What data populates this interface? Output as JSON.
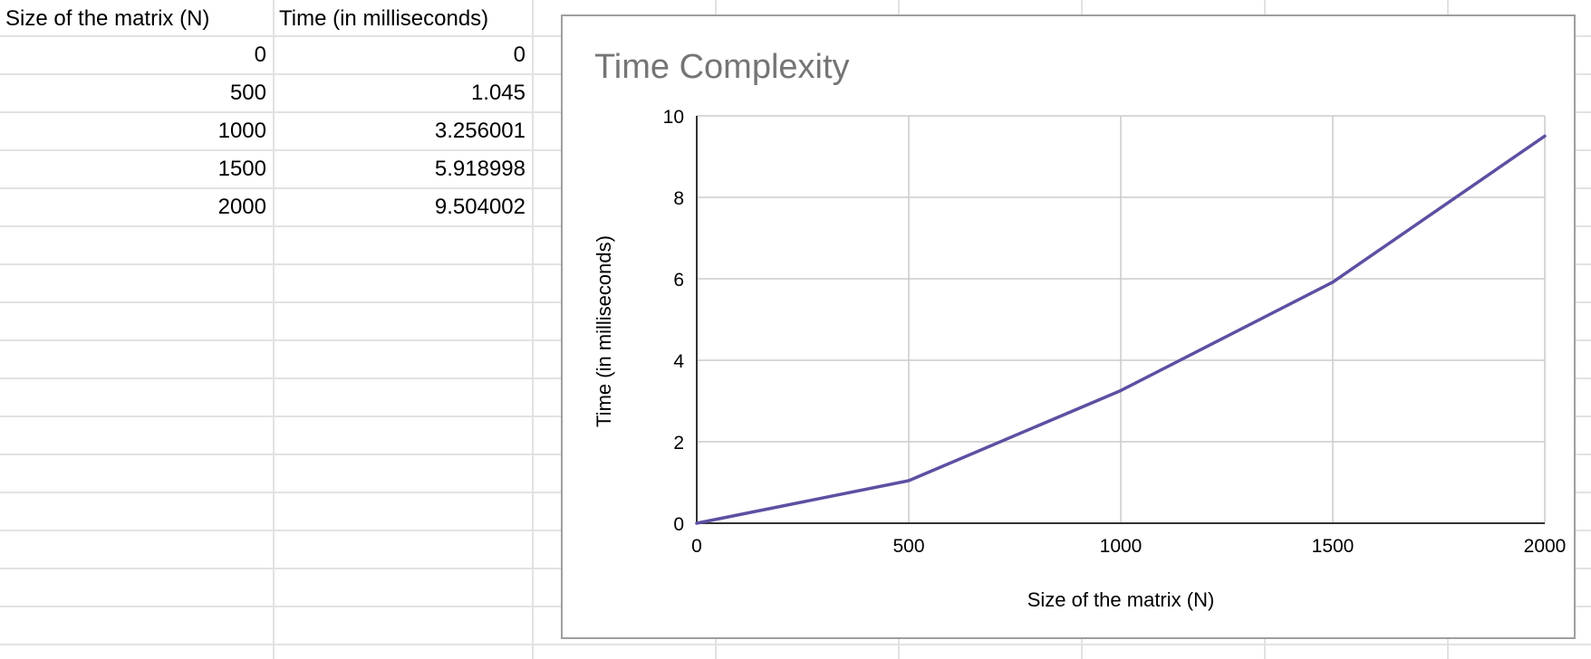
{
  "sheet": {
    "headers": [
      "Size of the matrix (N)",
      "Time (in milliseconds)"
    ],
    "rows": [
      {
        "n": "0",
        "time": "0"
      },
      {
        "n": "500",
        "time": "1.045"
      },
      {
        "n": "1000",
        "time": "3.256001"
      },
      {
        "n": "1500",
        "time": "5.918998"
      },
      {
        "n": "2000",
        "time": "9.504002"
      }
    ]
  },
  "chart_data": {
    "type": "line",
    "title": "Time Complexity",
    "xlabel": "Size of the matrix (N)",
    "ylabel": "Time (in milliseconds)",
    "x": [
      0,
      500,
      1000,
      1500,
      2000
    ],
    "series": [
      {
        "values": [
          0,
          1.045,
          3.256001,
          5.918998,
          9.504002
        ]
      }
    ],
    "xlim": [
      0,
      2000
    ],
    "ylim": [
      0,
      10
    ],
    "xticks": [
      "0",
      "500",
      "1000",
      "1500",
      "2000"
    ],
    "yticks": [
      "0",
      "2",
      "4",
      "6",
      "8",
      "10"
    ],
    "grid": true,
    "legend": "none",
    "colors": {
      "line": "#5e4fa2",
      "grid": "#cccccc",
      "title": "#757575"
    }
  }
}
